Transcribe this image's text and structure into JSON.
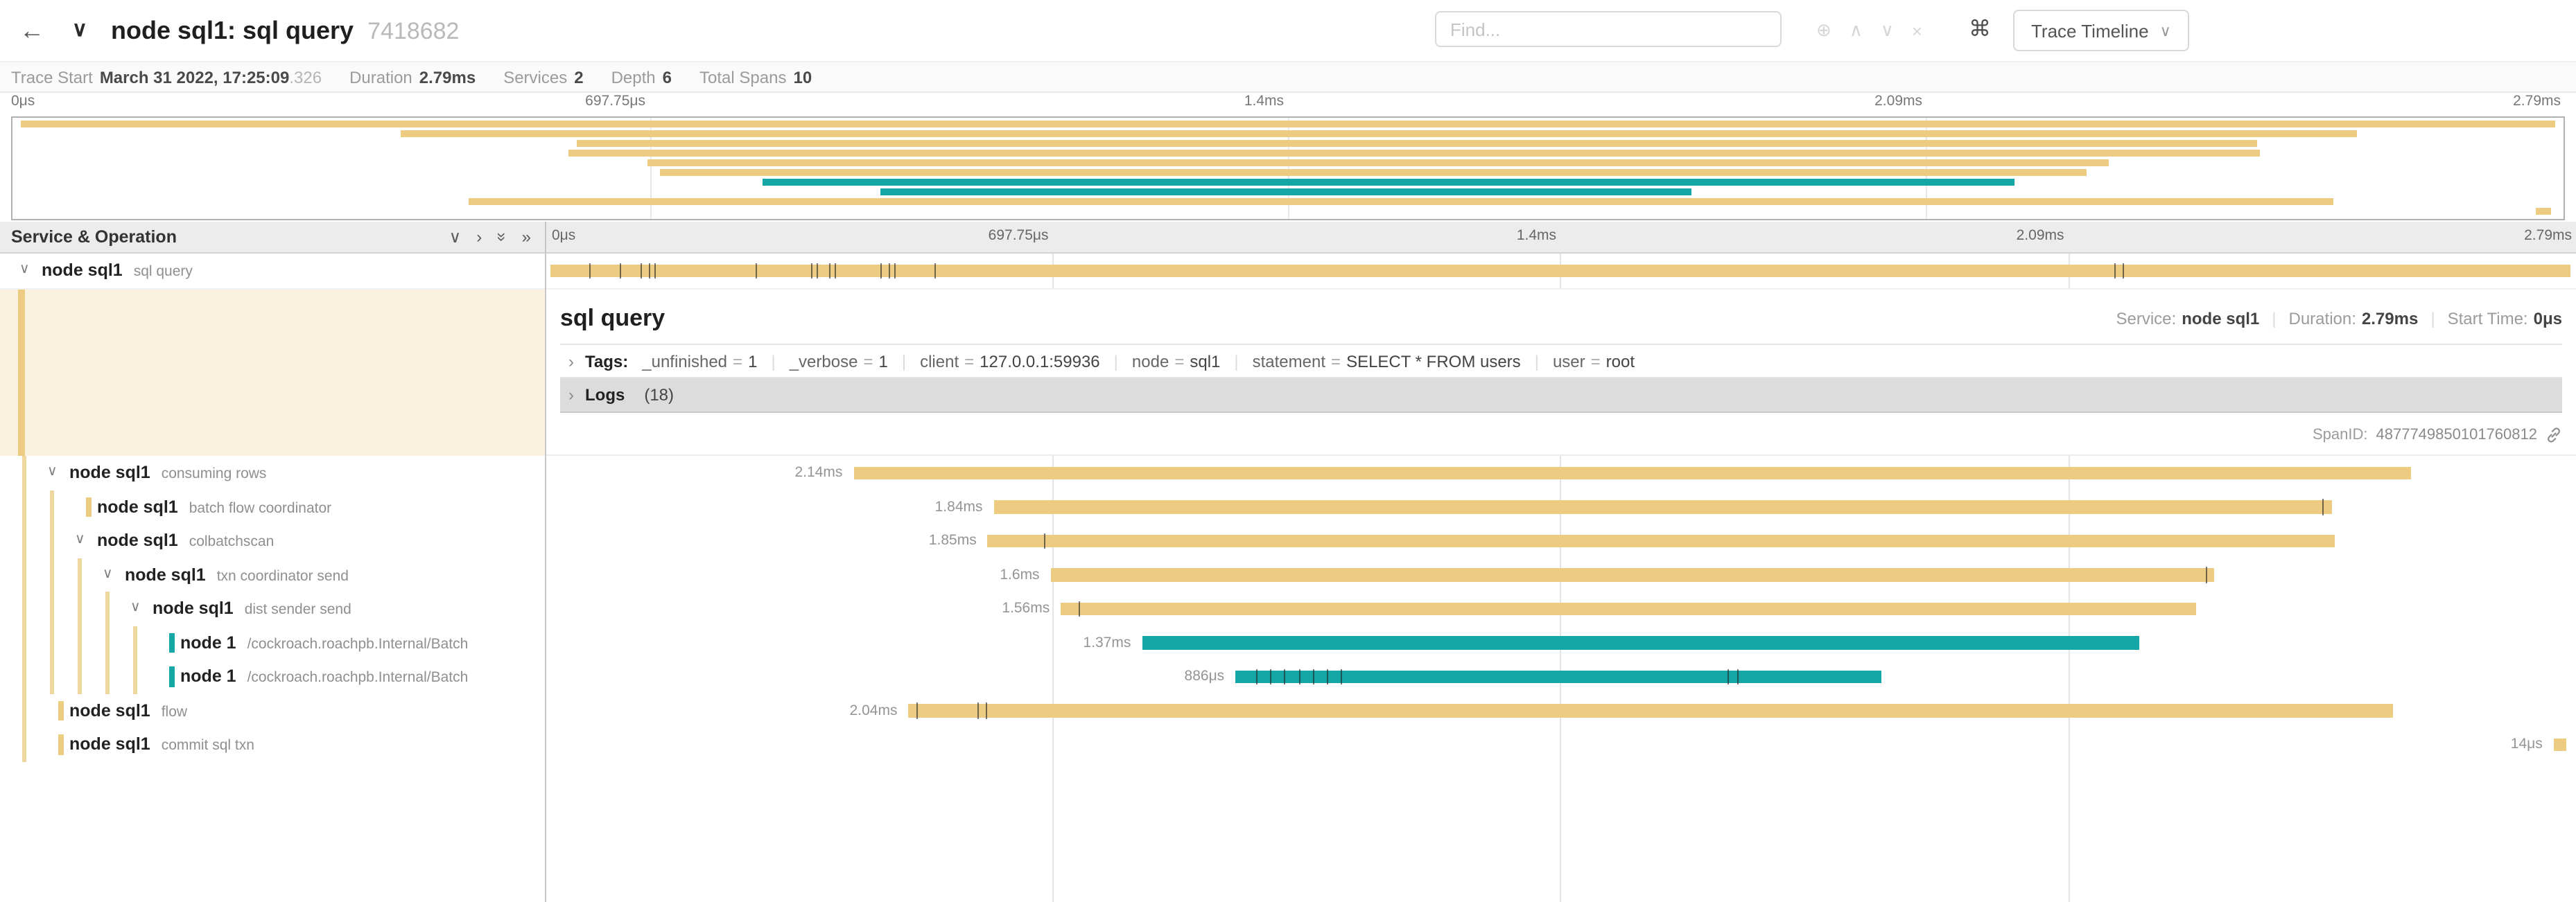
{
  "colors": {
    "tan": "#ECCB82",
    "teal": "#14A5A5"
  },
  "icons": {
    "back": "←",
    "collapse": "∨",
    "search_extra": "⊕",
    "search_prev": "∧",
    "search_next": "∨",
    "search_clear": "×",
    "shortcut": "⌘",
    "caret_down": "∨",
    "accordion_closed": "›",
    "tree_chevron": "∨",
    "name_col_icons": [
      "∨",
      "›",
      "»",
      "»"
    ]
  },
  "header": {
    "title": "node sql1: sql query",
    "trace_id": "7418682",
    "find_placeholder": "Find...",
    "view_button": "Trace Timeline"
  },
  "summary": {
    "items": [
      {
        "label": "Trace Start",
        "value": "March 31 2022, 17:25:09",
        "suffix": ".326"
      },
      {
        "label": "Duration",
        "value": "2.79ms"
      },
      {
        "label": "Services",
        "value": "2"
      },
      {
        "label": "Depth",
        "value": "6"
      },
      {
        "label": "Total Spans",
        "value": "10"
      }
    ]
  },
  "minimap": {
    "ticks": [
      "0μs",
      "697.75μs",
      "1.4ms",
      "2.09ms",
      "2.79ms"
    ]
  },
  "timeline": {
    "left_header": "Service & Operation",
    "ticks": [
      "0μs",
      "697.75μs",
      "1.4ms",
      "2.09ms",
      "2.79ms"
    ],
    "rows": [
      {
        "service": "node sql1",
        "operation": "sql query",
        "depth": 0,
        "parent": true,
        "color": "tan",
        "bar": {
          "start": 0.3,
          "width": 99.4,
          "label": "",
          "ticks": [
            2.2,
            3.7,
            4.7,
            5.1,
            5.4,
            10.4,
            13.1,
            13.4,
            14,
            14.3,
            16.5,
            16.9,
            17.2,
            19.2,
            77.3,
            77.7
          ]
        }
      },
      {
        "service": "node sql1",
        "operation": "consuming rows",
        "depth": 1,
        "parent": true,
        "color": "tan",
        "bar": {
          "start": 15.2,
          "width": 76.7,
          "label": "2.14ms",
          "ticks": []
        }
      },
      {
        "service": "node sql1",
        "operation": "batch flow coordinator",
        "depth": 2,
        "parent": false,
        "color": "tan",
        "bar": {
          "start": 22.1,
          "width": 65.9,
          "label": "1.84ms",
          "ticks": [
            87.5
          ]
        }
      },
      {
        "service": "node sql1",
        "operation": "colbatchscan",
        "depth": 2,
        "parent": true,
        "color": "tan",
        "bar": {
          "start": 21.8,
          "width": 66.3,
          "label": "1.85ms",
          "ticks": [
            24.6
          ]
        }
      },
      {
        "service": "node sql1",
        "operation": "txn coordinator send",
        "depth": 3,
        "parent": true,
        "color": "tan",
        "bar": {
          "start": 24.9,
          "width": 57.3,
          "label": "1.6ms",
          "ticks": [
            81.8
          ]
        }
      },
      {
        "service": "node sql1",
        "operation": "dist sender send",
        "depth": 4,
        "parent": true,
        "color": "tan",
        "bar": {
          "start": 25.4,
          "width": 55.9,
          "label": "1.56ms",
          "ticks": [
            26.3
          ]
        }
      },
      {
        "service": "node 1",
        "operation": "/cockroach.roachpb.Internal/Batch",
        "depth": 5,
        "parent": false,
        "color": "teal",
        "bar": {
          "start": 29.4,
          "width": 49.1,
          "label": "1.37ms",
          "ticks": []
        }
      },
      {
        "service": "node 1",
        "operation": "/cockroach.roachpb.Internal/Batch",
        "depth": 5,
        "parent": false,
        "color": "teal",
        "bar": {
          "start": 34,
          "width": 31.8,
          "label": "886μs",
          "ticks": [
            35,
            35.7,
            36.4,
            37.1,
            37.8,
            38.5,
            39.2,
            58.2,
            58.7
          ]
        }
      },
      {
        "service": "node sql1",
        "operation": "flow",
        "depth": 1,
        "parent": false,
        "color": "tan",
        "bar": {
          "start": 17.9,
          "width": 73.1,
          "label": "2.04ms",
          "ticks": [
            18.3,
            21.3,
            21.7
          ]
        }
      },
      {
        "service": "node sql1",
        "operation": "commit sql txn",
        "depth": 1,
        "parent": false,
        "color": "tan",
        "bar": {
          "start": 98.9,
          "width": 0.6,
          "label": "14μs",
          "ticks": []
        }
      }
    ]
  },
  "detail": {
    "title": "sql query",
    "sep": "|",
    "service_label": "Service:",
    "service": "node sql1",
    "duration_label": "Duration:",
    "duration": "2.79ms",
    "start_label": "Start Time:",
    "start": "0μs",
    "tags_label": "Tags:",
    "tags": [
      {
        "key": "_unfinished",
        "value": "1"
      },
      {
        "key": "_verbose",
        "value": "1"
      },
      {
        "key": "client",
        "value": "127.0.0.1:59936"
      },
      {
        "key": "node",
        "value": "sql1"
      },
      {
        "key": "statement",
        "value": "SELECT * FROM users"
      },
      {
        "key": "user",
        "value": "root"
      }
    ],
    "logs_label": "Logs",
    "logs_count": "(18)",
    "span_id_label": "SpanID:",
    "span_id": "4877749850101760812"
  }
}
